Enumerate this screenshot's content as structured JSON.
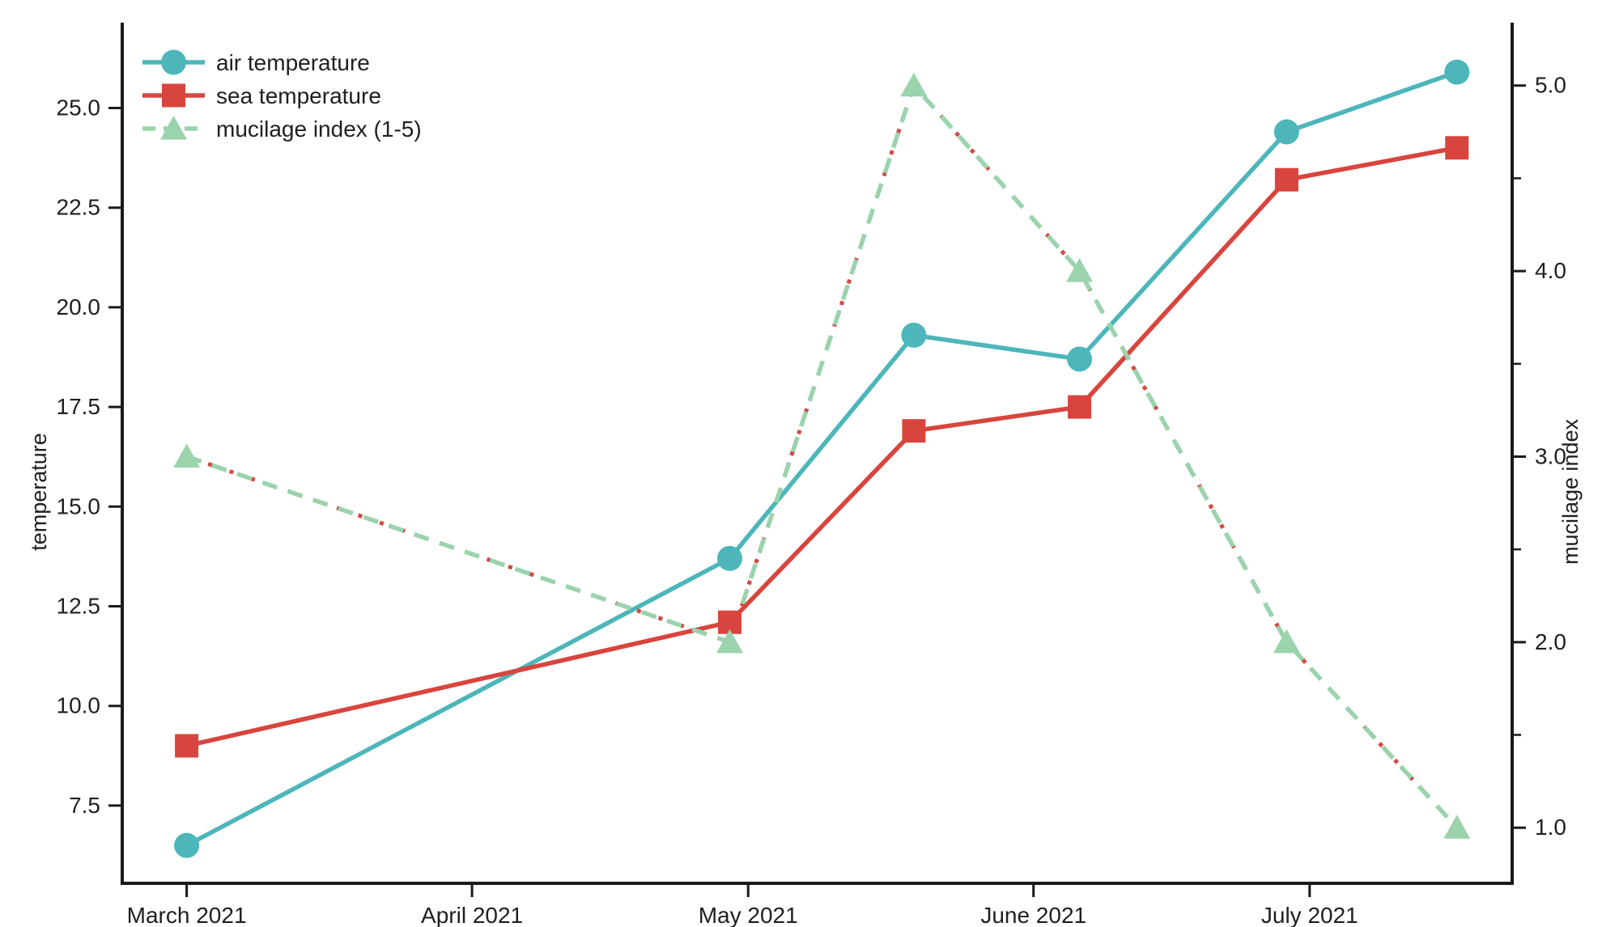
{
  "chart_data": {
    "type": "line",
    "title": "",
    "x_axis": {
      "tick_labels": [
        "March 2021",
        "April 2021",
        "May 2021",
        "June 2021",
        "July 2021"
      ],
      "tick_day_offsets": [
        0,
        31,
        61,
        92,
        122
      ],
      "range_day_offsets": [
        -7,
        144
      ]
    },
    "left_y_axis": {
      "label": "temperature",
      "tick_labels": [
        "7.5",
        "10.0",
        "12.5",
        "15.0",
        "17.5",
        "20.0",
        "22.5",
        "25.0"
      ],
      "tick_values": [
        7.5,
        10.0,
        12.5,
        15.0,
        17.5,
        20.0,
        22.5,
        25.0
      ],
      "range": [
        5.55,
        27.1
      ]
    },
    "right_y_axis": {
      "label": "mucilage index",
      "tick_labels": [
        "1.0",
        "2.0",
        "3.0",
        "4.0",
        "5.0"
      ],
      "tick_values": [
        1.0,
        2.0,
        3.0,
        4.0,
        5.0
      ],
      "minor_tick_values": [
        1.5,
        2.5,
        3.5,
        4.5
      ],
      "range": [
        0.7,
        5.33
      ]
    },
    "series": [
      {
        "name": "air temperature",
        "axis": "left",
        "marker": "circle",
        "line_style": "solid",
        "color": "#4db6ba",
        "x_day_offsets": [
          0,
          59,
          79,
          97,
          119.5,
          138
        ],
        "values": [
          6.5,
          13.7,
          19.3,
          18.7,
          24.4,
          25.9
        ]
      },
      {
        "name": "sea temperature",
        "axis": "left",
        "marker": "square",
        "line_style": "solid",
        "color": "#d8453e",
        "x_day_offsets": [
          0,
          59,
          79,
          97,
          119.5,
          138
        ],
        "values": [
          9.0,
          12.1,
          16.9,
          17.5,
          23.2,
          24.0
        ]
      },
      {
        "name": "mucilage index (1-5)",
        "axis": "right",
        "marker": "triangle",
        "line_style": "dashed",
        "color": "#9ad3ac",
        "underlay_dash_color": "#cf4b44",
        "x_day_offsets": [
          0,
          59,
          79,
          97,
          119.5,
          138
        ],
        "values": [
          3.0,
          2.0,
          5.0,
          4.0,
          2.0,
          1.0
        ]
      }
    ],
    "legend": {
      "position": "upper-left",
      "items": [
        "air temperature",
        "sea temperature",
        "mucilage index (1-5)"
      ]
    },
    "layout_hints": {
      "grid": "off",
      "spines": [
        "left",
        "right",
        "bottom"
      ],
      "axis_color": "#1a1a1a"
    }
  }
}
